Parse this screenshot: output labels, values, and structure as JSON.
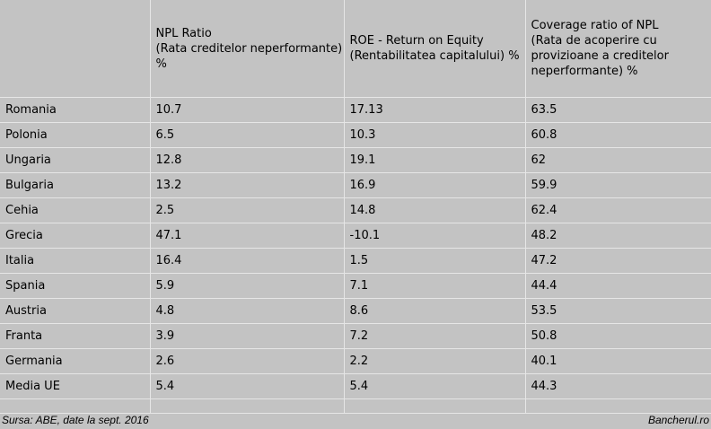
{
  "chart_data": {
    "type": "table",
    "columns": [
      "",
      "NPL Ratio\n(Rata creditelor neperformante)\n%",
      "ROE - Return on Equity\n(Rentabilitatea capitalului) %",
      "Coverage ratio of NPL\n(Rata de acoperire cu\nprovizioane a creditelor\nneperformante) %"
    ],
    "rows": [
      [
        "Romania",
        "10.7",
        "17.13",
        "63.5"
      ],
      [
        "Polonia",
        "6.5",
        "10.3",
        "60.8"
      ],
      [
        "Ungaria",
        "12.8",
        "19.1",
        "62"
      ],
      [
        "Bulgaria",
        "13.2",
        "16.9",
        "59.9"
      ],
      [
        "Cehia",
        "2.5",
        "14.8",
        "62.4"
      ],
      [
        "Grecia",
        "47.1",
        "-10.1",
        "48.2"
      ],
      [
        "Italia",
        "16.4",
        "1.5",
        "47.2"
      ],
      [
        "Spania",
        "5.9",
        "7.1",
        "44.4"
      ],
      [
        "Austria",
        "4.8",
        "8.6",
        "53.5"
      ],
      [
        "Franta",
        "3.9",
        "7.2",
        "50.8"
      ],
      [
        "Germania",
        "2.6",
        "2.2",
        "40.1"
      ],
      [
        "Media UE",
        "5.4",
        "5.4",
        "44.3"
      ]
    ]
  },
  "footer": {
    "source": "Sursa: ABE, date la sept. 2016",
    "brand": "Bancherul.ro"
  },
  "colors": {
    "background": "#c3c3c3",
    "grid": "#e6e6e6"
  }
}
